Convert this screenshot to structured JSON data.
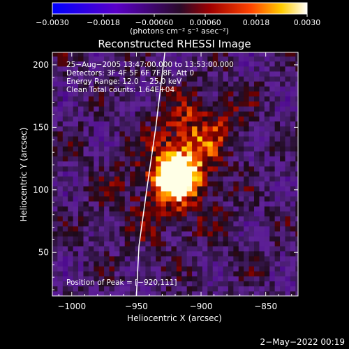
{
  "chart_data": {
    "type": "heatmap",
    "title": "Reconstructed RHESSI Image",
    "xlabel": "Heliocentric X (arcsec)",
    "ylabel": "Heliocentric Y (arcsec)",
    "xlim": [
      -1015,
      -825
    ],
    "ylim": [
      15,
      210
    ],
    "x_ticks": [
      {
        "value": -1000,
        "label": "−1000"
      },
      {
        "value": -950,
        "label": "−950"
      },
      {
        "value": -900,
        "label": "−900"
      },
      {
        "value": -850,
        "label": "−850"
      }
    ],
    "y_ticks": [
      {
        "value": 50,
        "label": "50"
      },
      {
        "value": 100,
        "label": "100"
      },
      {
        "value": 150,
        "label": "150"
      },
      {
        "value": 200,
        "label": "200"
      }
    ],
    "annotations": [
      "25−Aug−2005 13:47:00.000 to 13:53:00.000",
      "Detectors: 3F 4F 5F 6F 7F 8F, Att 0",
      "Energy Range: 12.0 − 25.0 keV",
      "Clean     Total counts: 1.64E+04"
    ],
    "peak_label": "Position of Peak = [−920,111]",
    "peak": [
      -920,
      111
    ],
    "colorbar": {
      "range": [
        -0.003,
        0.003
      ],
      "tick_labels": [
        "−0.0030",
        "−0.0018",
        "−0.00060",
        "0.00060",
        "0.0018",
        "0.0030"
      ],
      "unit_label": "(photons cm⁻² s⁻¹ asec⁻²)"
    },
    "limb_curve": [
      [
        -950,
        15
      ],
      [
        -948,
        55
      ],
      [
        -942,
        100
      ],
      [
        -935,
        150
      ],
      [
        -928,
        210
      ]
    ]
  },
  "footer": {
    "timestamp": "2−May−2022 00:19"
  },
  "colors": {
    "background": "#000000",
    "text": "#ffffff"
  }
}
